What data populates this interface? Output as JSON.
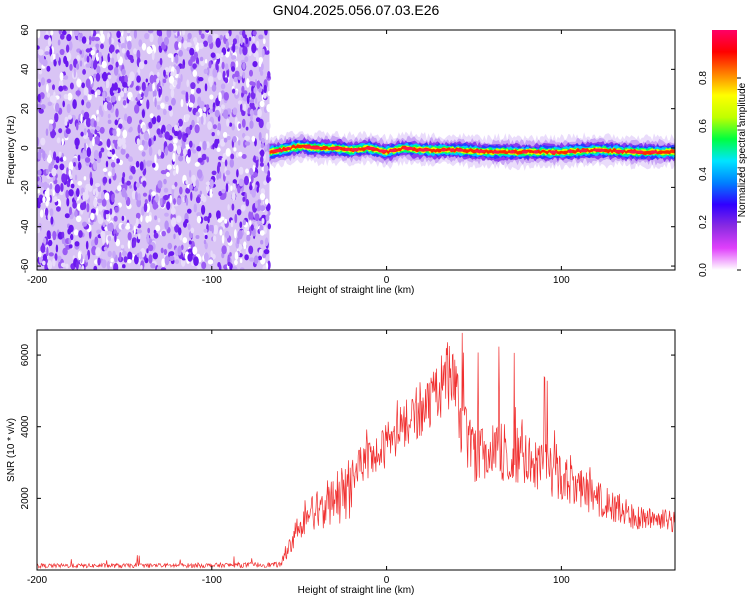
{
  "figure": {
    "title": "GN04.2025.056.07.03.E26"
  },
  "chart_data": [
    {
      "type": "heatmap",
      "name": "spectrogram",
      "xlabel": "Height of straight line (km)",
      "ylabel": "Frequency (Hz)",
      "xlim": [
        -200,
        165
      ],
      "ylim": [
        -62,
        60
      ],
      "xticks": [
        -200,
        -100,
        0,
        100
      ],
      "yticks": [
        -60,
        -40,
        -20,
        0,
        20,
        40,
        60
      ],
      "noise_region_x": [
        -200,
        -67
      ],
      "signal_start_x": -67,
      "colorbar": {
        "label": "Normalized spectral amplitude",
        "range": [
          0.0,
          1.0
        ],
        "ticks": [
          0.0,
          0.2,
          0.4,
          0.6,
          0.8
        ],
        "colors": [
          "#ffffff",
          "#e040fb",
          "#8a2be2",
          "#3000ff",
          "#0080ff",
          "#00e5ff",
          "#00ff40",
          "#c0ff00",
          "#ffff00",
          "#ff8000",
          "#ff0000",
          "#ff0066"
        ]
      },
      "ridge": {
        "x": [
          -67,
          -60,
          -50,
          -40,
          -30,
          -20,
          -10,
          0,
          10,
          20,
          40,
          60,
          80,
          100,
          120,
          140,
          165
        ],
        "y": [
          -2,
          -1,
          1,
          0,
          0,
          -1,
          0,
          -2,
          0,
          -1,
          -1,
          -2,
          -2,
          -2,
          -1,
          -2,
          -2
        ]
      }
    },
    {
      "type": "line",
      "name": "snr",
      "xlabel": "Height of straight line (km)",
      "ylabel": "SNR (10 * v/v)",
      "xlim": [
        -200,
        165
      ],
      "ylim": [
        0,
        6700
      ],
      "xticks": [
        -200,
        -100,
        0,
        100
      ],
      "yticks": [
        2000,
        4000,
        6000
      ],
      "color": "#f03030",
      "envelope": {
        "x": [
          -200,
          -150,
          -100,
          -60,
          -55,
          -50,
          -40,
          -30,
          -20,
          -10,
          0,
          10,
          20,
          30,
          35,
          40,
          45,
          50,
          60,
          70,
          80,
          90,
          100,
          110,
          120,
          130,
          140,
          150,
          165
        ],
        "y": [
          120,
          120,
          130,
          150,
          1000,
          1700,
          2200,
          2700,
          3200,
          3600,
          4100,
          4700,
          5300,
          5900,
          6400,
          5800,
          4600,
          4000,
          4200,
          4100,
          3900,
          3600,
          3200,
          2900,
          2500,
          2200,
          1900,
          1750,
          1700
        ]
      }
    }
  ]
}
